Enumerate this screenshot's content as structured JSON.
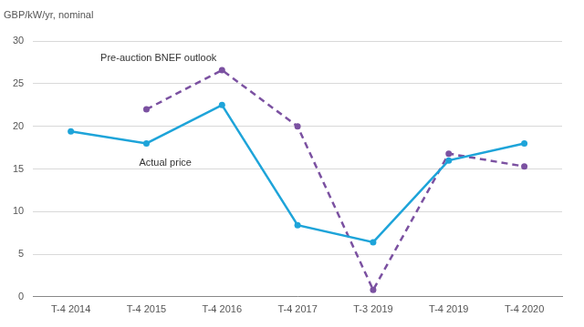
{
  "chart_data": {
    "type": "line",
    "ylabel": "GBP/kW/yr, nominal",
    "categories": [
      "T-4 2014",
      "T-4 2015",
      "T-4 2016",
      "T-4 2017",
      "T-3 2019",
      "T-4 2019",
      "T-4 2020"
    ],
    "series": [
      {
        "name": "Actual price",
        "color": "#1ea4d9",
        "line_style": "solid",
        "marker": "circle",
        "values": [
          19.4,
          18.0,
          22.5,
          8.4,
          6.4,
          16.0,
          18.0
        ]
      },
      {
        "name": "Pre-auction BNEF outlook",
        "color": "#7b51a1",
        "line_style": "dashed",
        "marker": "circle",
        "values": [
          null,
          22.0,
          26.6,
          20.0,
          0.8,
          16.8,
          15.3
        ]
      }
    ],
    "ylim": [
      0,
      30
    ],
    "yticks": [
      0,
      5,
      10,
      15,
      20,
      25,
      30
    ],
    "grid": true
  }
}
